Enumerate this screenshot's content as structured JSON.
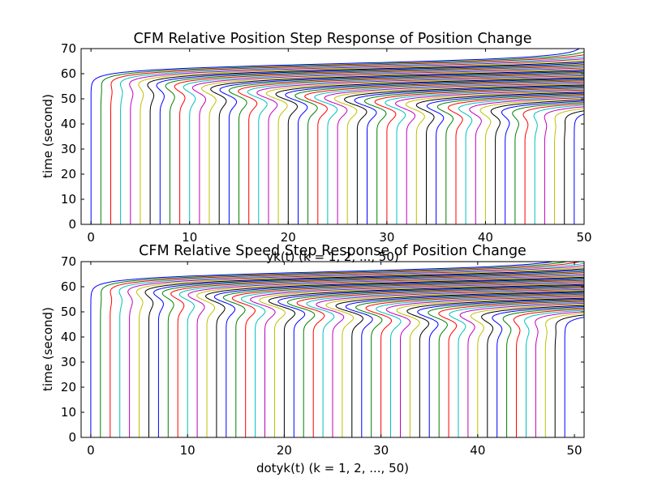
{
  "colors": [
    "#0000ff",
    "#008000",
    "#ff0000",
    "#00bfbf",
    "#bf00bf",
    "#bfbf00",
    "#000000"
  ],
  "chart_data": [
    {
      "type": "line",
      "title": "CFM Relative Position Step Response of Position Change",
      "xlabel": "yk(t) (k = 1, 2, ..., 50)",
      "ylabel": "time (second)",
      "xlim": [
        -1,
        50
      ],
      "ylim": [
        0,
        70
      ],
      "xticks": [
        0,
        10,
        20,
        30,
        40,
        50
      ],
      "yticks": [
        0,
        10,
        20,
        30,
        40,
        50,
        60,
        70
      ],
      "grid": false,
      "legend": "none",
      "series_count": 50,
      "series_rule": "vehicle k settles at x = k - 1; step disturbance front travels upstream from k = 50 to k = 1",
      "front_time_at_last_vehicle": 49,
      "front_time_at_first_vehicle": 64,
      "lead_vehicle_shift": 50,
      "wave_amplitude": 2.5
    },
    {
      "type": "line",
      "title": "CFM Relative Speed Step Response of Position Change",
      "xlabel": "dotyk(t) (k = 1, 2, ..., 50)",
      "ylabel": "time (second)",
      "xlim": [
        -1,
        51
      ],
      "ylim": [
        0,
        70
      ],
      "xticks": [
        0,
        10,
        20,
        30,
        40,
        50
      ],
      "yticks": [
        0,
        10,
        20,
        30,
        40,
        50,
        60,
        70
      ],
      "grid": false,
      "legend": "none",
      "series_count": 50,
      "series_rule": "vehicle k settles at x = k - 1; step disturbance front travels upstream from k = 50 to k = 1",
      "front_time_at_last_vehicle": 52,
      "front_time_at_first_vehicle": 66,
      "lead_vehicle_shift": 50,
      "wave_amplitude": 3
    }
  ]
}
